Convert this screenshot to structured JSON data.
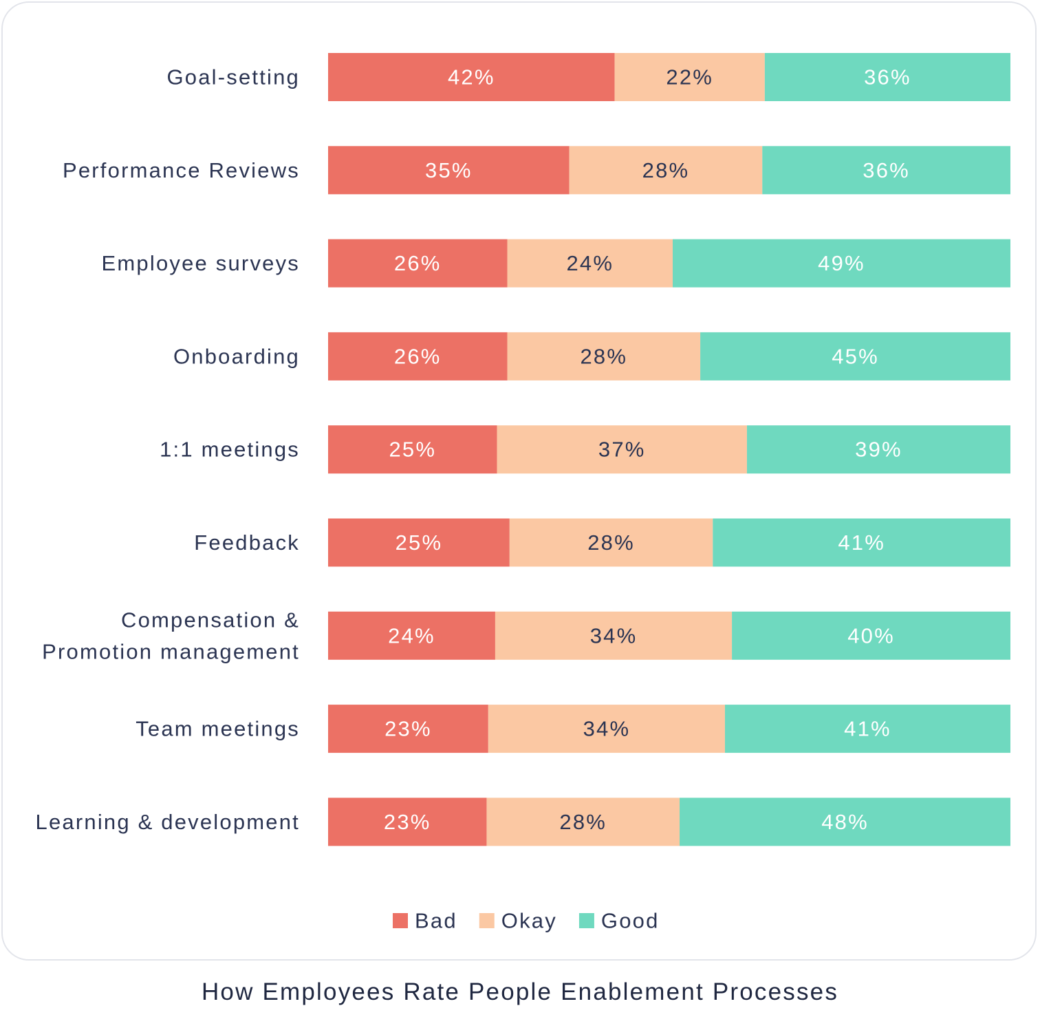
{
  "chart_data": {
    "type": "bar",
    "orientation": "horizontal",
    "stacked": true,
    "percent": true,
    "caption": "How Employees Rate People Enablement Processes",
    "categories": [
      "Goal-setting",
      "Performance Reviews",
      "Employee surveys",
      "Onboarding",
      "1:1 meetings",
      "Feedback",
      "Compensation & Promotion management",
      "Team meetings",
      "Learning & development"
    ],
    "category_lines": [
      [
        "Goal-setting"
      ],
      [
        "Performance Reviews"
      ],
      [
        "Employee surveys"
      ],
      [
        "Onboarding"
      ],
      [
        "1:1 meetings"
      ],
      [
        "Feedback"
      ],
      [
        "Compensation &",
        "Promotion management"
      ],
      [
        "Team meetings"
      ],
      [
        "Learning & development"
      ]
    ],
    "series": [
      {
        "name": "Bad",
        "color": "#ec7165",
        "label_color": "#ffffff",
        "values": [
          42,
          35,
          26,
          26,
          25,
          25,
          24,
          23,
          23
        ]
      },
      {
        "name": "Okay",
        "color": "#fbc8a3",
        "label_color": "#2b3452",
        "values": [
          22,
          28,
          24,
          28,
          37,
          28,
          34,
          34,
          28
        ]
      },
      {
        "name": "Good",
        "color": "#6fd9bf",
        "label_color": "#ffffff",
        "values": [
          36,
          36,
          49,
          45,
          39,
          41,
          40,
          41,
          48
        ]
      }
    ],
    "legend": {
      "position": "bottom-center"
    },
    "grid": false
  }
}
